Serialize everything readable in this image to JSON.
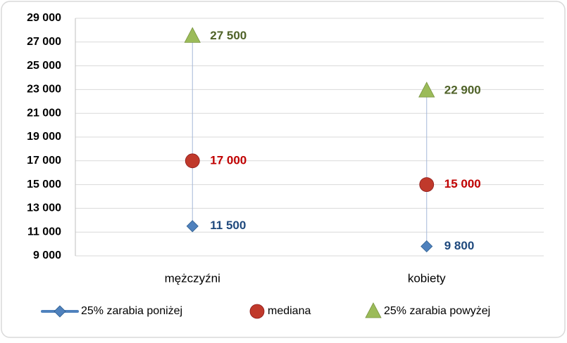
{
  "chart_data": {
    "type": "line",
    "categories": [
      "mężczyźni",
      "kobiety"
    ],
    "series": [
      {
        "name": "25% zarabia poniżej",
        "color": "#4f81bd",
        "marker": "diamond",
        "label_color": "#1f497d",
        "values": [
          11500,
          9800
        ],
        "value_labels": [
          "11 500",
          "9 800"
        ]
      },
      {
        "name": "mediana",
        "color": "#c0392b",
        "marker": "circle",
        "label_color": "#c00000",
        "values": [
          17000,
          15000
        ],
        "value_labels": [
          "17 000",
          "15 000"
        ]
      },
      {
        "name": "25% zarabia powyżej",
        "color": "#9bbb59",
        "marker": "triangle",
        "label_color": "#4f6228",
        "values": [
          27500,
          22900
        ],
        "value_labels": [
          "27 500",
          "22 900"
        ]
      }
    ],
    "ylim": [
      9000,
      29000
    ],
    "yticks": [
      {
        "value": 9000,
        "label": "9 000"
      },
      {
        "value": 11000,
        "label": "11 000"
      },
      {
        "value": 13000,
        "label": "13 000"
      },
      {
        "value": 15000,
        "label": "15 000"
      },
      {
        "value": 17000,
        "label": "17 000"
      },
      {
        "value": 19000,
        "label": "19 000"
      },
      {
        "value": 21000,
        "label": "21 000"
      },
      {
        "value": 23000,
        "label": "23 000"
      },
      {
        "value": 25000,
        "label": "25 000"
      },
      {
        "value": 27000,
        "label": "27 000"
      },
      {
        "value": 29000,
        "label": "29 000"
      }
    ],
    "grid": true,
    "hi_lo_lines": true,
    "legend": "bottom"
  }
}
